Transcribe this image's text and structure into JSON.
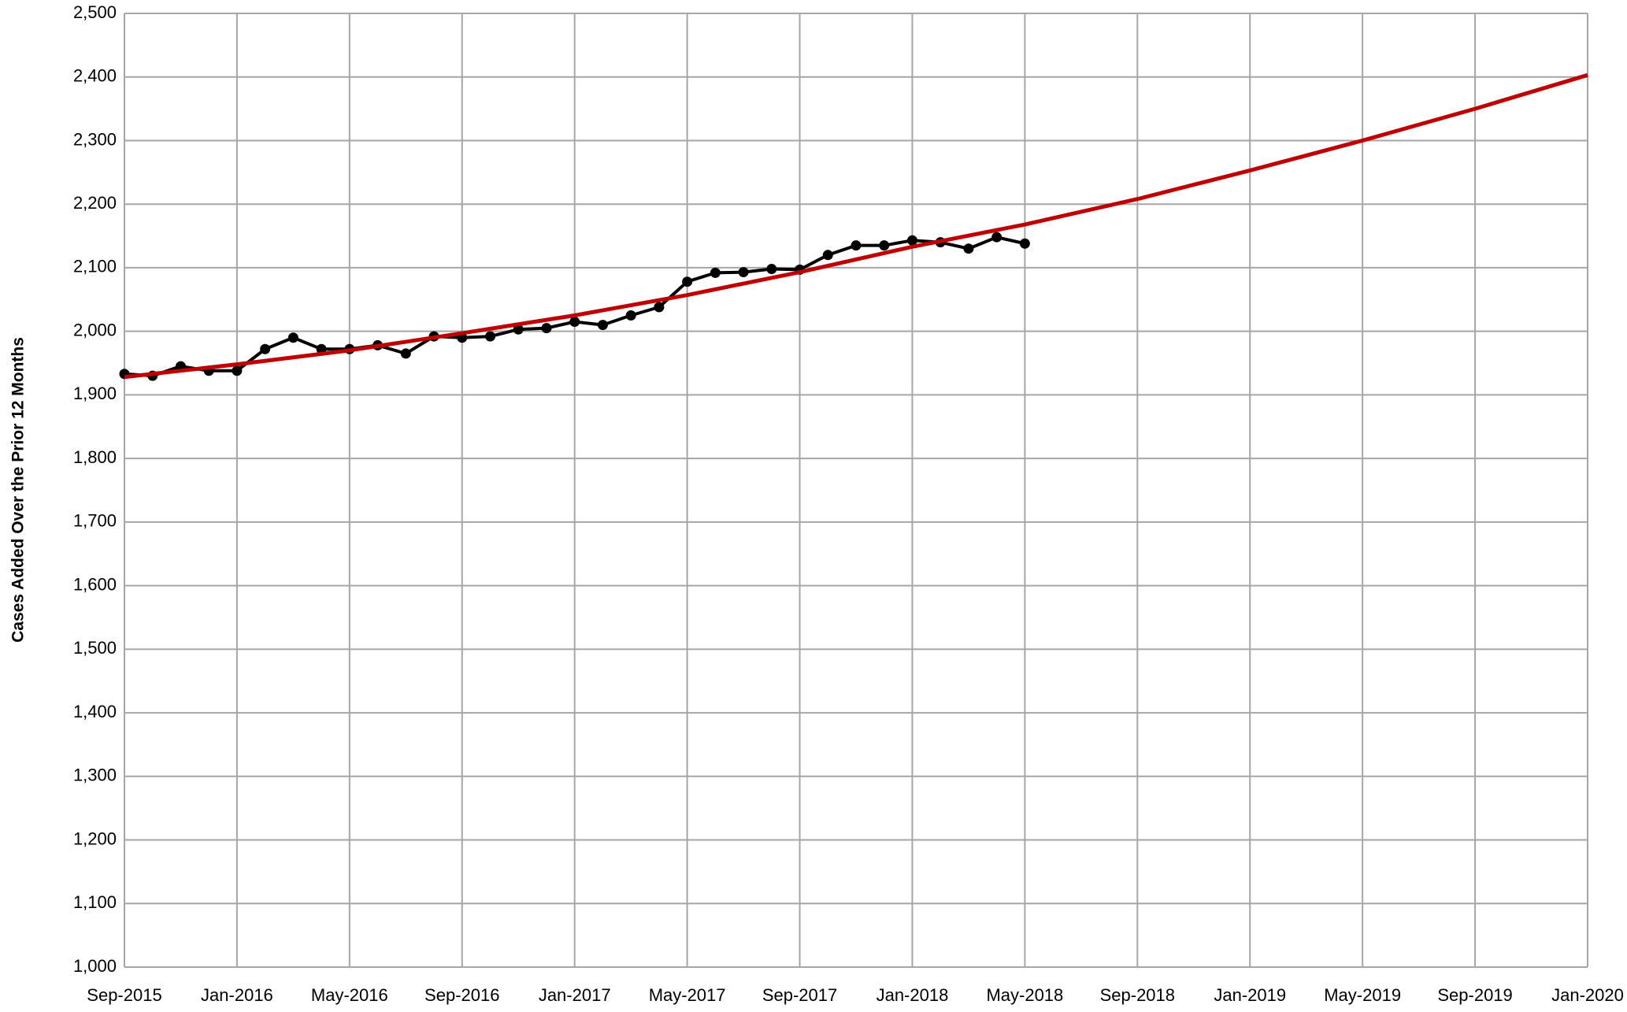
{
  "chart_data": {
    "type": "line",
    "ylabel": "Cases Added Over the Prior 12 Months",
    "ylim": [
      1000,
      2500
    ],
    "yticks": [
      {
        "value": 1000,
        "label": "1,000"
      },
      {
        "value": 1100,
        "label": "1,100"
      },
      {
        "value": 1200,
        "label": "1,200"
      },
      {
        "value": 1300,
        "label": "1,300"
      },
      {
        "value": 1400,
        "label": "1,400"
      },
      {
        "value": 1500,
        "label": "1,500"
      },
      {
        "value": 1600,
        "label": "1,600"
      },
      {
        "value": 1700,
        "label": "1,700"
      },
      {
        "value": 1800,
        "label": "1,800"
      },
      {
        "value": 1900,
        "label": "1,900"
      },
      {
        "value": 2000,
        "label": "2,000"
      },
      {
        "value": 2100,
        "label": "2,100"
      },
      {
        "value": 2200,
        "label": "2,200"
      },
      {
        "value": 2300,
        "label": "2,300"
      },
      {
        "value": 2400,
        "label": "2,400"
      },
      {
        "value": 2500,
        "label": "2,500"
      }
    ],
    "xlim": [
      "2015-09",
      "2020-01"
    ],
    "xticks": [
      {
        "value": "2015-09",
        "label": "Sep-2015"
      },
      {
        "value": "2016-01",
        "label": "Jan-2016"
      },
      {
        "value": "2016-05",
        "label": "May-2016"
      },
      {
        "value": "2016-09",
        "label": "Sep-2016"
      },
      {
        "value": "2017-01",
        "label": "Jan-2017"
      },
      {
        "value": "2017-05",
        "label": "May-2017"
      },
      {
        "value": "2017-09",
        "label": "Sep-2017"
      },
      {
        "value": "2018-01",
        "label": "Jan-2018"
      },
      {
        "value": "2018-05",
        "label": "May-2018"
      },
      {
        "value": "2018-09",
        "label": "Sep-2018"
      },
      {
        "value": "2019-01",
        "label": "Jan-2019"
      },
      {
        "value": "2019-05",
        "label": "May-2019"
      },
      {
        "value": "2019-09",
        "label": "Sep-2019"
      },
      {
        "value": "2020-01",
        "label": "Jan-2020"
      }
    ],
    "grid": true,
    "series": [
      {
        "color": "#000000",
        "markers": true,
        "x": [
          "2015-09",
          "2015-10",
          "2015-11",
          "2015-12",
          "2016-01",
          "2016-02",
          "2016-03",
          "2016-04",
          "2016-05",
          "2016-06",
          "2016-07",
          "2016-08",
          "2016-09",
          "2016-10",
          "2016-11",
          "2016-12",
          "2017-01",
          "2017-02",
          "2017-03",
          "2017-04",
          "2017-05",
          "2017-06",
          "2017-07",
          "2017-08",
          "2017-09",
          "2017-10",
          "2017-11",
          "2017-12",
          "2018-01",
          "2018-02",
          "2018-03",
          "2018-04",
          "2018-05"
        ],
        "values": [
          1933,
          1930,
          1945,
          1938,
          1938,
          1972,
          1990,
          1972,
          1972,
          1978,
          1965,
          1992,
          1990,
          1992,
          2003,
          2005,
          2015,
          2010,
          2025,
          2038,
          2078,
          2092,
          2093,
          2098,
          2097,
          2120,
          2135,
          2135,
          2143,
          2140,
          2130,
          2148,
          2138
        ]
      },
      {
        "color": "#c00000",
        "markers": false,
        "x": [
          "2015-09",
          "2016-01",
          "2016-05",
          "2016-09",
          "2017-01",
          "2017-05",
          "2017-09",
          "2018-01",
          "2018-05",
          "2018-09",
          "2019-01",
          "2019-05",
          "2019-09",
          "2020-01"
        ],
        "values": [
          1928,
          1948,
          1970,
          1997,
          2025,
          2057,
          2093,
          2133,
          2168,
          2208,
          2253,
          2300,
          2350,
          2403
        ]
      }
    ]
  }
}
